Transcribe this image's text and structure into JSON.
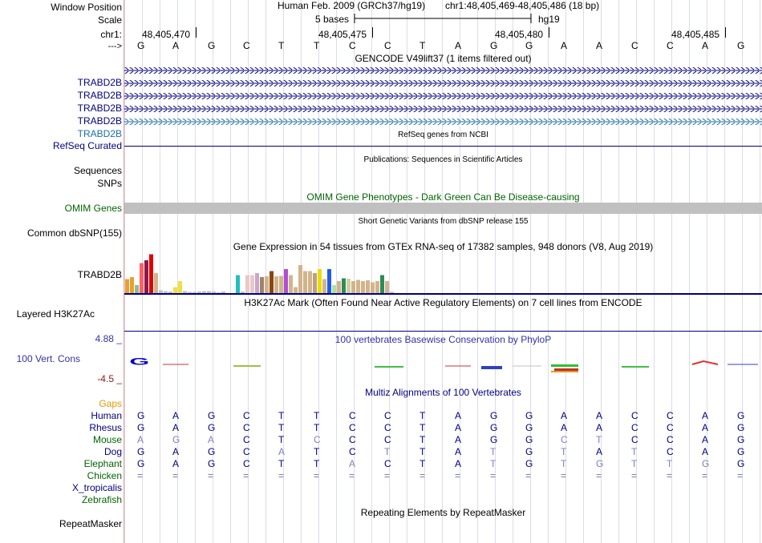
{
  "labels": {
    "window_position": "Window Position",
    "scale": "Scale",
    "chrom": "chr1:",
    "arrow": "--->",
    "genes": [
      "TRABD2B",
      "TRABD2B",
      "TRABD2B",
      "TRABD2B",
      "TRABD2B"
    ],
    "refseq": "RefSeq Curated",
    "sequences": "Sequences",
    "snps": "SNPs",
    "omim": "OMIM Genes",
    "common_dbsnp": "Common dbSNP(155)",
    "gtex_gene": "TRABD2B",
    "layered": "Layered H3K27Ac",
    "cons_max": "4.88 _",
    "cons_label": "100 Vert. Cons",
    "cons_min": "-4.5 _",
    "gaps": "Gaps",
    "species": [
      "Human",
      "Rhesus",
      "Mouse",
      "Dog",
      "Elephant",
      "Chicken",
      "X_tropicalis",
      "Zebrafish"
    ],
    "repeatmasker": "RepeatMasker"
  },
  "header": {
    "assembly": "Human Feb. 2009 (GRCh37/hg19)",
    "position": "chr1:48,405,469-48,405,486 (18 bp)",
    "scale_text": "5 bases",
    "scale_db": "hg19",
    "coords": [
      "48,405,470",
      "48,405,475",
      "48,405,480",
      "48,405,485"
    ]
  },
  "sequence": [
    "G",
    "A",
    "G",
    "C",
    "T",
    "T",
    "C",
    "C",
    "T",
    "A",
    "G",
    "G",
    "A",
    "A",
    "C",
    "C",
    "A",
    "G"
  ],
  "tracks": {
    "gencode": "GENCODE V49lift37 (1 items filtered out)",
    "refseq": "RefSeq genes from NCBI",
    "publications": "Publications: Sequences in Scientific Articles",
    "omim": "OMIM Gene Phenotypes - Dark Green Can Be Disease-causing",
    "dbsnp": "Short Genetic Variants from dbSNP release 155",
    "gtex": "Gene Expression in 54 tissues from GTEx RNA-seq of 17382 samples, 948 donors (V8, Aug 2019)",
    "h3k27ac": "H3K27Ac Mark (Often Found Near Active Regulatory Elements) on 7 cell lines from ENCODE",
    "phylop": "100 vertebrates Basewise Conservation by PhyloP",
    "multiz": "Multiz Alignments of 100 Vertebrates",
    "repeats": "Repeating Elements by RepeatMasker"
  },
  "alignment": {
    "Human": [
      "G",
      "A",
      "G",
      "C",
      "T",
      "T",
      "C",
      "C",
      "T",
      "A",
      "G",
      "G",
      "A",
      "A",
      "C",
      "C",
      "A",
      "G"
    ],
    "Rhesus": [
      "G",
      "A",
      "G",
      "C",
      "T",
      "T",
      "C",
      "C",
      "T",
      "A",
      "G",
      "G",
      "A",
      "A",
      "C",
      "C",
      "A",
      "G"
    ],
    "Mouse": [
      "A",
      "G",
      "A",
      "C",
      "T",
      "C",
      "C",
      "C",
      "T",
      "A",
      "G",
      "G",
      "C",
      "T",
      "C",
      "C",
      "A",
      "G"
    ],
    "Dog": [
      "G",
      "A",
      "G",
      "C",
      "A",
      "T",
      "C",
      "T",
      "T",
      "A",
      "T",
      "G",
      "T",
      "A",
      "T",
      "C",
      "A",
      "G"
    ],
    "Elephant": [
      "G",
      "A",
      "G",
      "C",
      "T",
      "T",
      "A",
      "C",
      "T",
      "A",
      "T",
      "G",
      "T",
      "G",
      "T",
      "T",
      "G",
      "G"
    ],
    "Chicken": [
      "=",
      "=",
      "=",
      "=",
      "=",
      "=",
      "=",
      "=",
      "=",
      "=",
      "=",
      "=",
      "=",
      "=",
      "=",
      "=",
      "=",
      "="
    ]
  },
  "colors": {
    "navy": "#000080",
    "omim_green": "#006400",
    "gaps_orange": "#e69a00",
    "phylop_blue": "#3232a8",
    "cons_red": "#8b1a1a"
  },
  "chart_data": {
    "type": "bar",
    "title": "Gene Expression in 54 tissues from GTEx RNA-seq of 17382 samples, 948 donors (V8, Aug 2019)",
    "values": [
      0.35,
      0.4,
      0.2,
      0.75,
      0.82,
      0.97,
      0.5,
      0.07,
      0.05,
      0.04,
      0.15,
      0.3,
      0.05,
      0.03,
      0.03,
      0.04,
      0.05,
      0.05,
      0.04,
      0.02,
      0.04,
      0.45,
      0.04,
      0.45,
      0.45,
      0.5,
      0.4,
      0.42,
      0.55,
      0.42,
      0.43,
      0.6,
      0.45,
      0.15,
      0.7,
      0.55,
      0.55,
      0.5,
      0.6,
      0.35,
      0.6,
      0.2,
      0.3,
      0.37,
      0.36,
      0.3,
      0.33,
      0.3,
      0.32,
      0.27,
      0.3,
      0.45,
      0.3,
      0.03
    ],
    "colors": [
      "#e8a030",
      "#e8a030",
      "#8fbc8f",
      "#ff6060",
      "#8b1a4a",
      "#e00000",
      "#d2b48c",
      "#c0c0c0",
      "#c0c0c0",
      "#c0c0c0",
      "#eee040",
      "#eee040",
      "#c0c0c0",
      "#c0c0c0",
      "#c0c0c0",
      "#c0c0c0",
      "#c0c0c0",
      "#c0c0c0",
      "#c0c0c0",
      "#c0c0c0",
      "#c0c0c0",
      "#20c0c0",
      "#c0c0c0",
      "#e8c8c8",
      "#e8c8c8",
      "#c8a8c8",
      "#a08070",
      "#d2b48c",
      "#8b4513",
      "#d2b48c",
      "#d2b48c",
      "#b050d0",
      "#d2b48c",
      "#d2b48c",
      "#d2b48c",
      "#d2b48c",
      "#d2b48c",
      "#c0a080",
      "#eedd00",
      "#d2b48c",
      "#2060e0",
      "#aee0a0",
      "#d2b48c",
      "#2e8b57",
      "#d0d0a0",
      "#d2b48c",
      "#d2b48c",
      "#d2b48c",
      "#d2b48c",
      "#d2b48c",
      "#d2b48c",
      "#2e8b57",
      "#d2b48c",
      "#d2b48c"
    ]
  }
}
